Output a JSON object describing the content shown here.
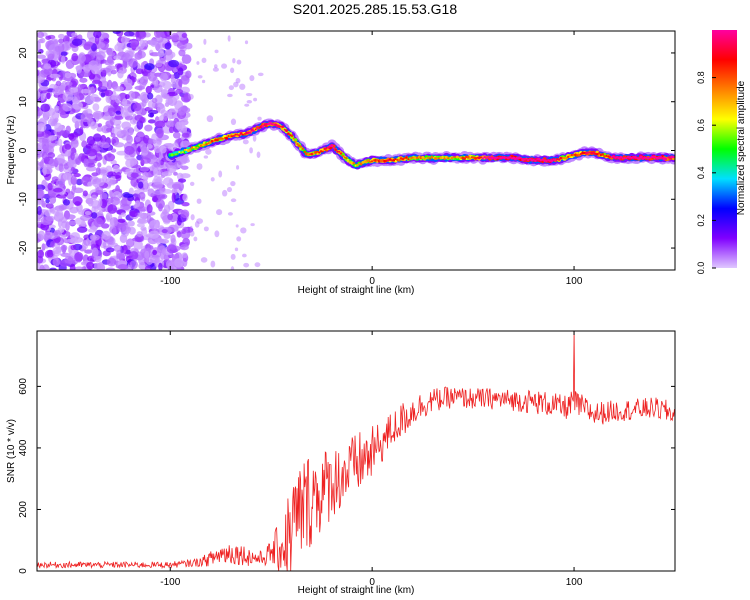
{
  "title": "S201.2025.285.15.53.G18",
  "chart_data": [
    {
      "type": "heatmap",
      "title": "S201.2025.285.15.53.G18",
      "xlabel": "Height of straight line (km)",
      "ylabel": "Frequency (Hz)",
      "xlim": [
        -166,
        150
      ],
      "ylim": [
        -24.5,
        24.5
      ],
      "xticks": [
        -100,
        0,
        100
      ],
      "xtick_labels": [
        "-100",
        "0",
        "100"
      ],
      "yticks": [
        -20,
        -10,
        0,
        10,
        20
      ],
      "ytick_labels": [
        "-20",
        "-10",
        "0",
        "10",
        "20"
      ],
      "colorbar": {
        "label": "Normalized spectral amplitude",
        "range": [
          0,
          1
        ],
        "ticks": [
          0.0,
          0.2,
          0.4,
          0.6,
          0.8
        ],
        "tick_labels": [
          "0.0",
          "0.2",
          "0.4",
          "0.6",
          "0.8"
        ],
        "colors": [
          "#e0c8ff",
          "#8000ff",
          "#0000ff",
          "#00e0ff",
          "#00ff00",
          "#ffff00",
          "#ff8000",
          "#ff0000",
          "#ff00a0"
        ]
      },
      "ridge": {
        "description_free": true,
        "x": [
          -100,
          -92,
          -85,
          -78,
          -70,
          -62,
          -55,
          -50,
          -45,
          -40,
          -36,
          -32,
          -28,
          -24,
          -20,
          -16,
          -12,
          -8,
          -4,
          0,
          10,
          20,
          30,
          40,
          50,
          60,
          70,
          80,
          85,
          90,
          95,
          100,
          105,
          110,
          115,
          120,
          130,
          140,
          150
        ],
        "y": [
          -1,
          0,
          1,
          2,
          3,
          3.5,
          5,
          5.5,
          5,
          3,
          1,
          -1,
          -0.5,
          0,
          1,
          -0.5,
          -2,
          -3,
          -2.5,
          -2,
          -2,
          -1.5,
          -1.5,
          -1.5,
          -1.5,
          -1.5,
          -1.5,
          -2,
          -2,
          -2,
          -1.5,
          -1,
          -0.5,
          -0.5,
          -1,
          -1.5,
          -1.5,
          -1.5,
          -1.5
        ],
        "amplitude": [
          0.35,
          0.45,
          0.55,
          0.6,
          0.65,
          0.7,
          0.75,
          0.8,
          0.7,
          0.6,
          0.55,
          0.55,
          0.6,
          0.7,
          0.85,
          0.65,
          0.55,
          0.5,
          0.55,
          0.6,
          0.7,
          0.55,
          0.55,
          0.55,
          0.6,
          0.85,
          0.85,
          0.9,
          0.85,
          0.9,
          0.55,
          0.6,
          0.7,
          0.8,
          0.6,
          0.9,
          0.85,
          0.85,
          0.8
        ]
      },
      "noise_region_x": [
        -166,
        -91
      ]
    },
    {
      "type": "line",
      "xlabel": "Height of straight line (km)",
      "ylabel": "SNR (10 * v/v)",
      "xlim": [
        -166,
        150
      ],
      "ylim": [
        0,
        780
      ],
      "xticks": [
        -100,
        0,
        100
      ],
      "xtick_labels": [
        "-100",
        "0",
        "100"
      ],
      "yticks": [
        0,
        200,
        400,
        600
      ],
      "ytick_labels": [
        "0",
        "200",
        "400",
        "600"
      ],
      "line_color": "#ee2222",
      "series": [
        {
          "name": "SNR",
          "x": [
            -166,
            -150,
            -120,
            -100,
            -90,
            -85,
            -80,
            -75,
            -70,
            -65,
            -60,
            -55,
            -50,
            -45,
            -42,
            -40,
            -38,
            -35,
            -30,
            -25,
            -20,
            -15,
            -10,
            -5,
            0,
            5,
            10,
            15,
            20,
            25,
            30,
            40,
            50,
            60,
            70,
            80,
            90,
            95,
            100,
            105,
            110,
            120,
            130,
            140,
            150
          ],
          "mean": [
            20,
            20,
            20,
            20,
            25,
            30,
            40,
            55,
            60,
            55,
            45,
            40,
            60,
            80,
            100,
            120,
            160,
            200,
            240,
            260,
            290,
            310,
            330,
            360,
            380,
            420,
            460,
            490,
            520,
            540,
            555,
            565,
            560,
            560,
            555,
            550,
            540,
            530,
            545,
            530,
            510,
            520,
            525,
            530,
            510
          ],
          "spread": [
            10,
            10,
            10,
            10,
            12,
            15,
            25,
            35,
            40,
            35,
            30,
            25,
            40,
            100,
            150,
            200,
            180,
            170,
            160,
            140,
            120,
            110,
            110,
            100,
            90,
            70,
            60,
            60,
            50,
            45,
            40,
            35,
            35,
            35,
            35,
            40,
            40,
            40,
            45,
            40,
            40,
            35,
            35,
            35,
            40
          ],
          "spike": {
            "x": 100,
            "y": 780
          }
        }
      ]
    }
  ]
}
